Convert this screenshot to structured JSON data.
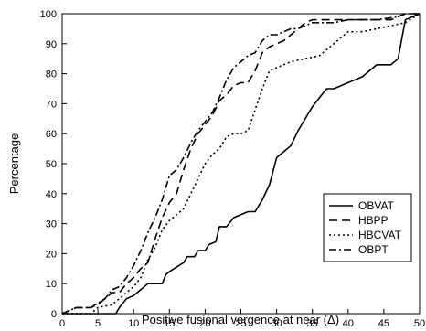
{
  "chart_data": {
    "type": "line",
    "title": "",
    "xlabel": "Positive fusional vergence at near (Δ)",
    "ylabel": "Percentage",
    "xlim": [
      0,
      50
    ],
    "ylim": [
      0,
      100
    ],
    "x_ticks": [
      0,
      5,
      10,
      15,
      20,
      25,
      30,
      35,
      40,
      45,
      50
    ],
    "y_ticks": [
      0,
      10,
      20,
      30,
      40,
      50,
      60,
      70,
      80,
      90,
      100
    ],
    "grid": false,
    "legend_position": "lower-right",
    "series": [
      {
        "name": "OBVAT",
        "style": "solid",
        "points": [
          [
            0,
            0
          ],
          [
            7.5,
            0
          ],
          [
            8,
            2
          ],
          [
            9,
            5
          ],
          [
            10,
            6
          ],
          [
            11,
            8
          ],
          [
            12,
            10
          ],
          [
            14,
            10
          ],
          [
            14.5,
            13
          ],
          [
            15,
            14
          ],
          [
            17,
            17
          ],
          [
            17.5,
            19
          ],
          [
            18.5,
            19
          ],
          [
            19,
            21
          ],
          [
            20,
            21
          ],
          [
            20.5,
            23
          ],
          [
            21.5,
            24
          ],
          [
            22,
            29
          ],
          [
            23,
            29
          ],
          [
            24,
            32
          ],
          [
            25,
            33
          ],
          [
            26,
            34
          ],
          [
            27,
            34
          ],
          [
            28,
            38
          ],
          [
            29,
            43
          ],
          [
            30,
            52
          ],
          [
            31,
            54
          ],
          [
            32,
            56
          ],
          [
            33,
            61
          ],
          [
            34,
            65
          ],
          [
            35,
            69
          ],
          [
            36,
            72
          ],
          [
            37,
            75
          ],
          [
            38,
            75
          ],
          [
            40,
            77
          ],
          [
            42,
            79
          ],
          [
            44,
            83
          ],
          [
            46,
            83
          ],
          [
            47,
            85
          ],
          [
            48,
            98
          ],
          [
            50,
            100
          ]
        ]
      },
      {
        "name": "HBPP",
        "style": "dashed",
        "points": [
          [
            0,
            0
          ],
          [
            2,
            2
          ],
          [
            4,
            2
          ],
          [
            5,
            3
          ],
          [
            6,
            5
          ],
          [
            7,
            7
          ],
          [
            8,
            7
          ],
          [
            9,
            10
          ],
          [
            10,
            12
          ],
          [
            11,
            15
          ],
          [
            12,
            17
          ],
          [
            13,
            25
          ],
          [
            14,
            32
          ],
          [
            15,
            37
          ],
          [
            16,
            40
          ],
          [
            17,
            48
          ],
          [
            18,
            55
          ],
          [
            19,
            60
          ],
          [
            20,
            63
          ],
          [
            21,
            66
          ],
          [
            22,
            71
          ],
          [
            23,
            73
          ],
          [
            24,
            76
          ],
          [
            25,
            77
          ],
          [
            26,
            77
          ],
          [
            27,
            81
          ],
          [
            28,
            87
          ],
          [
            29,
            89
          ],
          [
            30,
            90
          ],
          [
            31,
            91
          ],
          [
            32,
            93
          ],
          [
            33,
            95
          ],
          [
            34,
            97
          ],
          [
            35,
            98
          ],
          [
            36,
            98
          ],
          [
            40,
            98
          ],
          [
            44,
            98
          ],
          [
            46,
            98
          ],
          [
            48,
            100
          ],
          [
            50,
            100
          ]
        ]
      },
      {
        "name": "HBCVAT",
        "style": "dotted",
        "points": [
          [
            0,
            0
          ],
          [
            4,
            0
          ],
          [
            5,
            2
          ],
          [
            7,
            3
          ],
          [
            8,
            5
          ],
          [
            9,
            7
          ],
          [
            10,
            9
          ],
          [
            11,
            12
          ],
          [
            12,
            18
          ],
          [
            13,
            22
          ],
          [
            14,
            28
          ],
          [
            15,
            31
          ],
          [
            16,
            33
          ],
          [
            17,
            35
          ],
          [
            18,
            40
          ],
          [
            19,
            45
          ],
          [
            20,
            50
          ],
          [
            21,
            53
          ],
          [
            22,
            55
          ],
          [
            23,
            59
          ],
          [
            24,
            60
          ],
          [
            25,
            60
          ],
          [
            26,
            61
          ],
          [
            27,
            68
          ],
          [
            28,
            75
          ],
          [
            29,
            81
          ],
          [
            30,
            82
          ],
          [
            31,
            83
          ],
          [
            32,
            84
          ],
          [
            34,
            85
          ],
          [
            36,
            86
          ],
          [
            37,
            88
          ],
          [
            38,
            90
          ],
          [
            39,
            92
          ],
          [
            40,
            94
          ],
          [
            42,
            94
          ],
          [
            44,
            95
          ],
          [
            46,
            96
          ],
          [
            48,
            97
          ],
          [
            50,
            100
          ]
        ]
      },
      {
        "name": "OBPT",
        "style": "dashdot",
        "points": [
          [
            0,
            0
          ],
          [
            2,
            2
          ],
          [
            4,
            2
          ],
          [
            6,
            5
          ],
          [
            7,
            8
          ],
          [
            8,
            9
          ],
          [
            9,
            12
          ],
          [
            10,
            16
          ],
          [
            11,
            21
          ],
          [
            12,
            27
          ],
          [
            13,
            32
          ],
          [
            14,
            38
          ],
          [
            15,
            46
          ],
          [
            16,
            48
          ],
          [
            17,
            52
          ],
          [
            18,
            57
          ],
          [
            19,
            61
          ],
          [
            20,
            64
          ],
          [
            21,
            67
          ],
          [
            22,
            72
          ],
          [
            23,
            78
          ],
          [
            24,
            82
          ],
          [
            25,
            84
          ],
          [
            26,
            86
          ],
          [
            27,
            87
          ],
          [
            28,
            91
          ],
          [
            29,
            93
          ],
          [
            30,
            93
          ],
          [
            31,
            94
          ],
          [
            32,
            95
          ],
          [
            33,
            95
          ],
          [
            34,
            96
          ],
          [
            35,
            97
          ],
          [
            36,
            97
          ],
          [
            38,
            97
          ],
          [
            40,
            98
          ],
          [
            44,
            98
          ],
          [
            47,
            99
          ],
          [
            48,
            100
          ],
          [
            50,
            100
          ]
        ]
      }
    ]
  }
}
